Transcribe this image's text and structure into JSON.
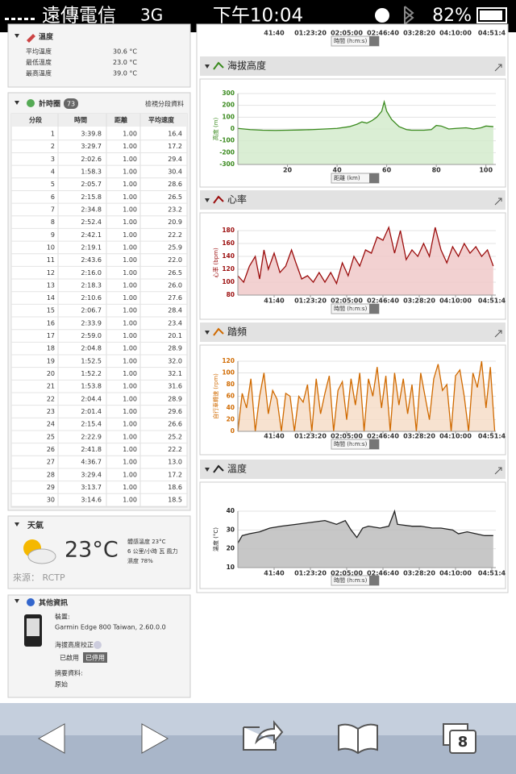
{
  "status_bar": {
    "carrier": "遠傳電信",
    "network": "3G",
    "time": "下午10:04",
    "battery": "82%"
  },
  "temperature_summary": {
    "title": "溫度",
    "rows": [
      [
        "平均溫度",
        "30.6 °C"
      ],
      [
        "最低溫度",
        "23.0 °C"
      ],
      [
        "最高溫度",
        "39.0 °C"
      ]
    ]
  },
  "laps": {
    "title": "計時圈",
    "count": 73,
    "link": "檢視分段資料",
    "columns": [
      "分段",
      "時間",
      "距離",
      "平均速度"
    ],
    "rows": [
      [
        "1",
        "3:39.8",
        "1.00",
        "16.4"
      ],
      [
        "2",
        "3:29.7",
        "1.00",
        "17.2"
      ],
      [
        "3",
        "2:02.6",
        "1.00",
        "29.4"
      ],
      [
        "4",
        "1:58.3",
        "1.00",
        "30.4"
      ],
      [
        "5",
        "2:05.7",
        "1.00",
        "28.6"
      ],
      [
        "6",
        "2:15.8",
        "1.00",
        "26.5"
      ],
      [
        "7",
        "2:34.8",
        "1.00",
        "23.2"
      ],
      [
        "8",
        "2:52.4",
        "1.00",
        "20.9"
      ],
      [
        "9",
        "2:42.1",
        "1.00",
        "22.2"
      ],
      [
        "10",
        "2:19.1",
        "1.00",
        "25.9"
      ],
      [
        "11",
        "2:43.6",
        "1.00",
        "22.0"
      ],
      [
        "12",
        "2:16.0",
        "1.00",
        "26.5"
      ],
      [
        "13",
        "2:18.3",
        "1.00",
        "26.0"
      ],
      [
        "14",
        "2:10.6",
        "1.00",
        "27.6"
      ],
      [
        "15",
        "2:06.7",
        "1.00",
        "28.4"
      ],
      [
        "16",
        "2:33.9",
        "1.00",
        "23.4"
      ],
      [
        "17",
        "2:59.0",
        "1.00",
        "20.1"
      ],
      [
        "18",
        "2:04.8",
        "1.00",
        "28.9"
      ],
      [
        "19",
        "1:52.5",
        "1.00",
        "32.0"
      ],
      [
        "20",
        "1:52.2",
        "1.00",
        "32.1"
      ],
      [
        "21",
        "1:53.8",
        "1.00",
        "31.6"
      ],
      [
        "22",
        "2:04.4",
        "1.00",
        "28.9"
      ],
      [
        "23",
        "2:01.4",
        "1.00",
        "29.6"
      ],
      [
        "24",
        "2:15.4",
        "1.00",
        "26.6"
      ],
      [
        "25",
        "2:22.9",
        "1.00",
        "25.2"
      ],
      [
        "26",
        "2:41.8",
        "1.00",
        "22.2"
      ],
      [
        "27",
        "4:36.7",
        "1.00",
        "13.0"
      ],
      [
        "28",
        "3:29.4",
        "1.00",
        "17.2"
      ],
      [
        "29",
        "3:13.7",
        "1.00",
        "18.6"
      ],
      [
        "30",
        "3:14.6",
        "1.00",
        "18.5"
      ]
    ]
  },
  "weather": {
    "title": "天氣",
    "temperature": "23°C",
    "details": [
      "體感溫度 23°C",
      "6 公里/小時 瓦 風力",
      "濕度 78%"
    ],
    "source": "來源： RCTP"
  },
  "other_info": {
    "title": "其他資訊",
    "device_label": "裝置:",
    "device": "Garmin Edge 800 Taiwan, 2.60.0.0",
    "altitude_label": "海拔高度校正",
    "enabled": "已啟用",
    "disabled": "已停用",
    "summary_label": "摘要資料:",
    "summary": "原始"
  },
  "prev_chart_axis": {
    "xlim": [
      0,
      17778
    ],
    "xticks": [
      {
        "value": 2500,
        "label": "41:40"
      },
      {
        "value": 5000,
        "label": "01:23:20"
      },
      {
        "value": 7500,
        "label": "02:05:00"
      },
      {
        "value": 10000,
        "label": "02:46:40"
      },
      {
        "value": 12500,
        "label": "03:28:20"
      },
      {
        "value": 15000,
        "label": "04:10:00"
      },
      {
        "value": 17500,
        "label": "04:51:4"
      }
    ],
    "x_selector": "時間 (h:m:s)"
  },
  "chart_data": [
    {
      "type": "area",
      "title": "海拔高度",
      "ylabel": "高度 (m)",
      "x_selector": "距離 (km)",
      "grid": true,
      "xlim": [
        0,
        104
      ],
      "ylim": [
        -300,
        300
      ],
      "xticks": [
        20,
        40,
        60,
        80,
        100
      ],
      "yticks": [
        300,
        200,
        100,
        0,
        -100,
        -200,
        -300
      ],
      "series": [
        {
          "color": "#3a8a1e",
          "fill": "#d3ebcd",
          "x": [
            0,
            5,
            10,
            15,
            20,
            25,
            30,
            35,
            40,
            45,
            48,
            50,
            52,
            54,
            56,
            58,
            59,
            60,
            62,
            65,
            68,
            70,
            75,
            78,
            80,
            82,
            85,
            88,
            92,
            95,
            98,
            100,
            103
          ],
          "values": [
            5,
            -5,
            -10,
            -12,
            -10,
            -8,
            -5,
            0,
            5,
            20,
            40,
            60,
            50,
            70,
            100,
            150,
            230,
            150,
            80,
            20,
            -5,
            -10,
            -10,
            -5,
            30,
            25,
            0,
            5,
            10,
            0,
            10,
            25,
            20
          ]
        }
      ]
    },
    {
      "type": "area",
      "title": "心率",
      "ylabel": "心率 (bpm)",
      "x_selector": "時間 (h:m:s)",
      "grid": true,
      "xlim": [
        0,
        17778
      ],
      "ylim": [
        80,
        180
      ],
      "xticks": [
        {
          "value": 2500,
          "label": "41:40"
        },
        {
          "value": 5000,
          "label": "01:23:20"
        },
        {
          "value": 7500,
          "label": "02:05:00"
        },
        {
          "value": 10000,
          "label": "02:46:40"
        },
        {
          "value": 12500,
          "label": "03:28:20"
        },
        {
          "value": 15000,
          "label": "04:10:00"
        },
        {
          "value": 17500,
          "label": "04:51:4"
        }
      ],
      "yticks": [
        180,
        160,
        140,
        120,
        100,
        80
      ],
      "series": [
        {
          "color": "#9b0d0d",
          "fill": "#f0c9c9",
          "x": [
            0,
            400,
            800,
            1200,
            1500,
            1800,
            2100,
            2500,
            2900,
            3300,
            3700,
            4000,
            4400,
            4800,
            5200,
            5600,
            6000,
            6400,
            6800,
            7200,
            7600,
            8000,
            8400,
            8800,
            9200,
            9600,
            10000,
            10400,
            10800,
            11200,
            11600,
            12000,
            12400,
            12800,
            13200,
            13600,
            14000,
            14400,
            14800,
            15200,
            15600,
            16000,
            16400,
            16800,
            17200,
            17600
          ],
          "values": [
            110,
            100,
            125,
            140,
            105,
            150,
            120,
            145,
            115,
            125,
            150,
            130,
            105,
            110,
            100,
            115,
            100,
            115,
            98,
            130,
            110,
            140,
            125,
            150,
            145,
            170,
            165,
            185,
            145,
            180,
            135,
            150,
            140,
            160,
            140,
            185,
            150,
            130,
            155,
            140,
            160,
            145,
            155,
            140,
            150,
            125
          ]
        }
      ]
    },
    {
      "type": "area",
      "title": "踏頻",
      "ylabel": "自行車轉速 (rpm)",
      "x_selector": "時間 (h:m:s)",
      "grid": true,
      "xlim": [
        0,
        17778
      ],
      "ylim": [
        0,
        120
      ],
      "xticks": [
        {
          "value": 2500,
          "label": "41:40"
        },
        {
          "value": 5000,
          "label": "01:23:20"
        },
        {
          "value": 7500,
          "label": "02:05:00"
        },
        {
          "value": 10000,
          "label": "02:46:40"
        },
        {
          "value": 12500,
          "label": "03:28:20"
        },
        {
          "value": 15000,
          "label": "04:10:00"
        },
        {
          "value": 17500,
          "label": "04:51:4"
        }
      ],
      "yticks": [
        120,
        100,
        80,
        60,
        40,
        20,
        0
      ],
      "series": [
        {
          "color": "#d06a00",
          "fill": "#f6ddc8",
          "x": [
            0,
            300,
            600,
            900,
            1200,
            1500,
            1800,
            2100,
            2400,
            2700,
            3000,
            3300,
            3600,
            3900,
            4200,
            4500,
            4800,
            5100,
            5400,
            5700,
            6000,
            6300,
            6600,
            6900,
            7200,
            7500,
            7800,
            8100,
            8400,
            8700,
            9000,
            9300,
            9600,
            9900,
            10200,
            10500,
            10800,
            11100,
            11400,
            11700,
            12000,
            12300,
            12600,
            12900,
            13200,
            13500,
            13800,
            14100,
            14400,
            14700,
            15000,
            15300,
            15600,
            15900,
            16200,
            16500,
            16800,
            17100,
            17400,
            17700
          ],
          "values": [
            0,
            65,
            40,
            90,
            0,
            60,
            100,
            30,
            70,
            55,
            0,
            65,
            60,
            0,
            60,
            50,
            80,
            0,
            90,
            30,
            65,
            95,
            0,
            70,
            85,
            20,
            90,
            45,
            100,
            0,
            90,
            60,
            110,
            40,
            95,
            0,
            100,
            45,
            90,
            30,
            80,
            0,
            100,
            60,
            20,
            90,
            115,
            70,
            80,
            0,
            95,
            105,
            60,
            0,
            100,
            75,
            120,
            40,
            110,
            0
          ]
        }
      ]
    },
    {
      "type": "area",
      "title": "溫度",
      "ylabel": "溫度 (°C)",
      "x_selector": "時間 (h:m:s)",
      "grid": true,
      "xlim": [
        0,
        17778
      ],
      "ylim": [
        10,
        40
      ],
      "xticks": [
        {
          "value": 2500,
          "label": "41:40"
        },
        {
          "value": 5000,
          "label": "01:23:20"
        },
        {
          "value": 7500,
          "label": "02:05:00"
        },
        {
          "value": 10000,
          "label": "02:46:40"
        },
        {
          "value": 12500,
          "label": "03:28:20"
        },
        {
          "value": 15000,
          "label": "04:10:00"
        },
        {
          "value": 17500,
          "label": "04:51:4"
        }
      ],
      "yticks": [
        40,
        30,
        20,
        10
      ],
      "series": [
        {
          "color": "#222222",
          "fill": "#bdbdbd",
          "x": [
            0,
            300,
            800,
            1500,
            2200,
            3000,
            4000,
            5000,
            6000,
            6800,
            7400,
            7800,
            8200,
            8600,
            9000,
            9800,
            10400,
            10800,
            11000,
            12000,
            12600,
            13400,
            14000,
            14800,
            15200,
            15800,
            16400,
            17000,
            17600
          ],
          "values": [
            23,
            27,
            28,
            29,
            31,
            32,
            33,
            34,
            35,
            33,
            35,
            30,
            26,
            31,
            32,
            31,
            32,
            40,
            33,
            32,
            32,
            31,
            31,
            30,
            28,
            29,
            28,
            27,
            27
          ]
        }
      ]
    }
  ],
  "toolbar": {
    "tabs": 8
  }
}
